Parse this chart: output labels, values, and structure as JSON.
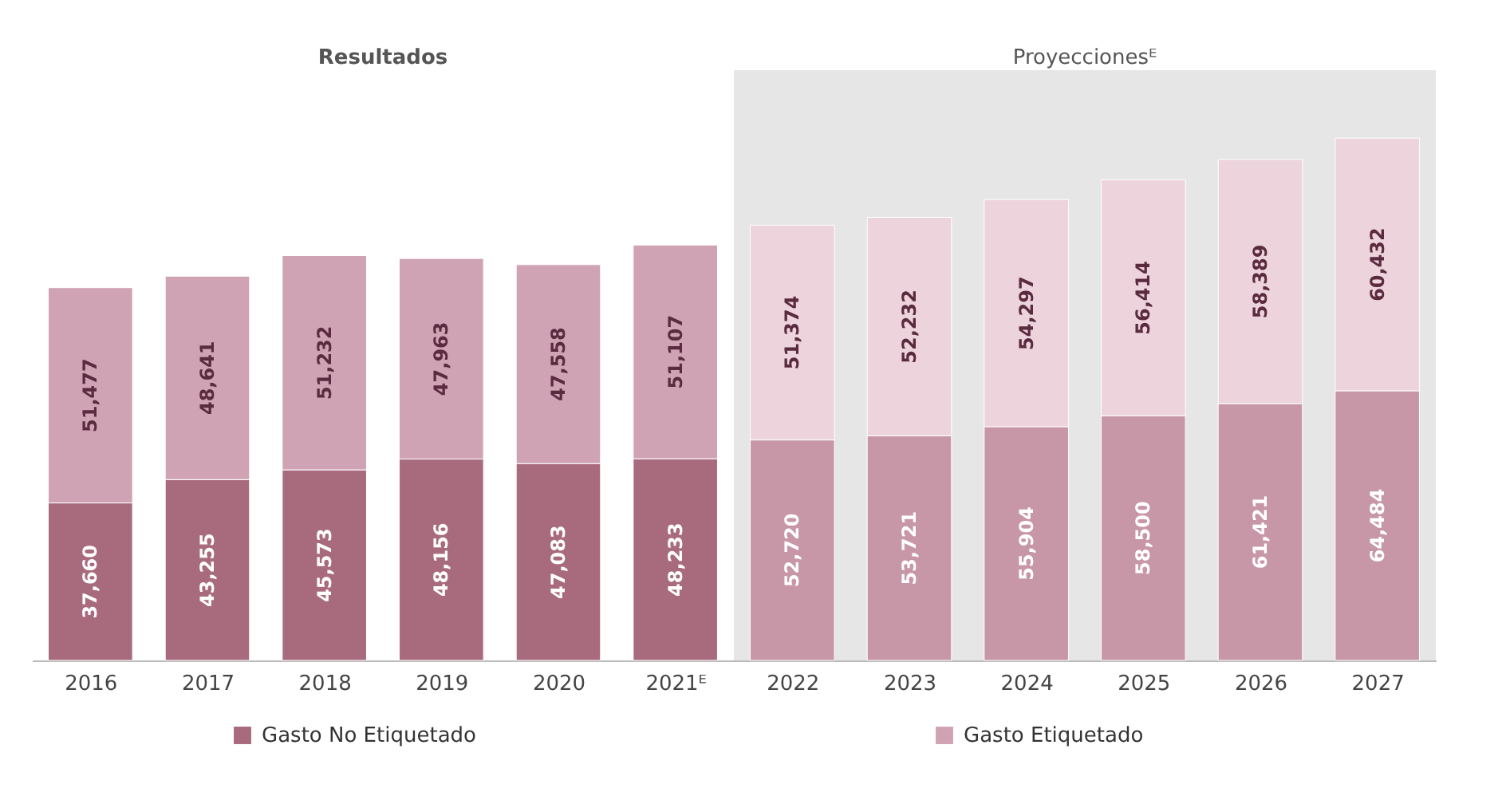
{
  "chart_data": {
    "type": "bar",
    "stacked": true,
    "legend": "bottom",
    "categories": [
      "2016",
      "2017",
      "2018",
      "2019",
      "2020",
      "2021ᴱ",
      "2022",
      "2023",
      "2024",
      "2025",
      "2026",
      "2027"
    ],
    "series": [
      {
        "name": "Gasto No Etiquetado",
        "color": "#a86b7e",
        "colors": [
          "#a86b7e",
          "#a86b7e",
          "#a86b7e",
          "#a86b7e",
          "#a86b7e",
          "#a86b7e",
          "#c797a8",
          "#c797a8",
          "#c797a8",
          "#c797a8",
          "#c797a8",
          "#c797a8"
        ],
        "values": [
          37660,
          43255,
          45573,
          48156,
          47083,
          48233,
          52720,
          53721,
          55904,
          58500,
          61421,
          64484
        ],
        "value_labels": [
          "37,660",
          "43,255",
          "45,573",
          "48,156",
          "47,083",
          "48,233",
          "52,720",
          "53,721",
          "55,904",
          "58,500",
          "61,421",
          "64,484"
        ]
      },
      {
        "name": "Gasto Etiquetado",
        "color": "#cfa3b3",
        "colors": [
          "#cfa3b3",
          "#cfa3b3",
          "#cfa3b3",
          "#cfa3b3",
          "#cfa3b3",
          "#cfa3b3",
          "#ecd3dc",
          "#ecd3dc",
          "#ecd3dc",
          "#ecd3dc",
          "#ecd3dc",
          "#ecd3dc"
        ],
        "values": [
          51477,
          48641,
          51232,
          47963,
          47558,
          51107,
          51374,
          52232,
          54297,
          56414,
          58389,
          60432
        ],
        "value_labels": [
          "51,477",
          "48,641",
          "51,232",
          "47,963",
          "47,558",
          "51,107",
          "51,374",
          "52,232",
          "54,297",
          "56,414",
          "58,389",
          "60,432"
        ]
      }
    ],
    "bands": [
      {
        "axis": "x",
        "from": "2022",
        "to": "2027",
        "label": "Proyeccionesᴱ",
        "color": "#e6e6e6"
      }
    ],
    "annotations": [
      "Resultados"
    ]
  }
}
